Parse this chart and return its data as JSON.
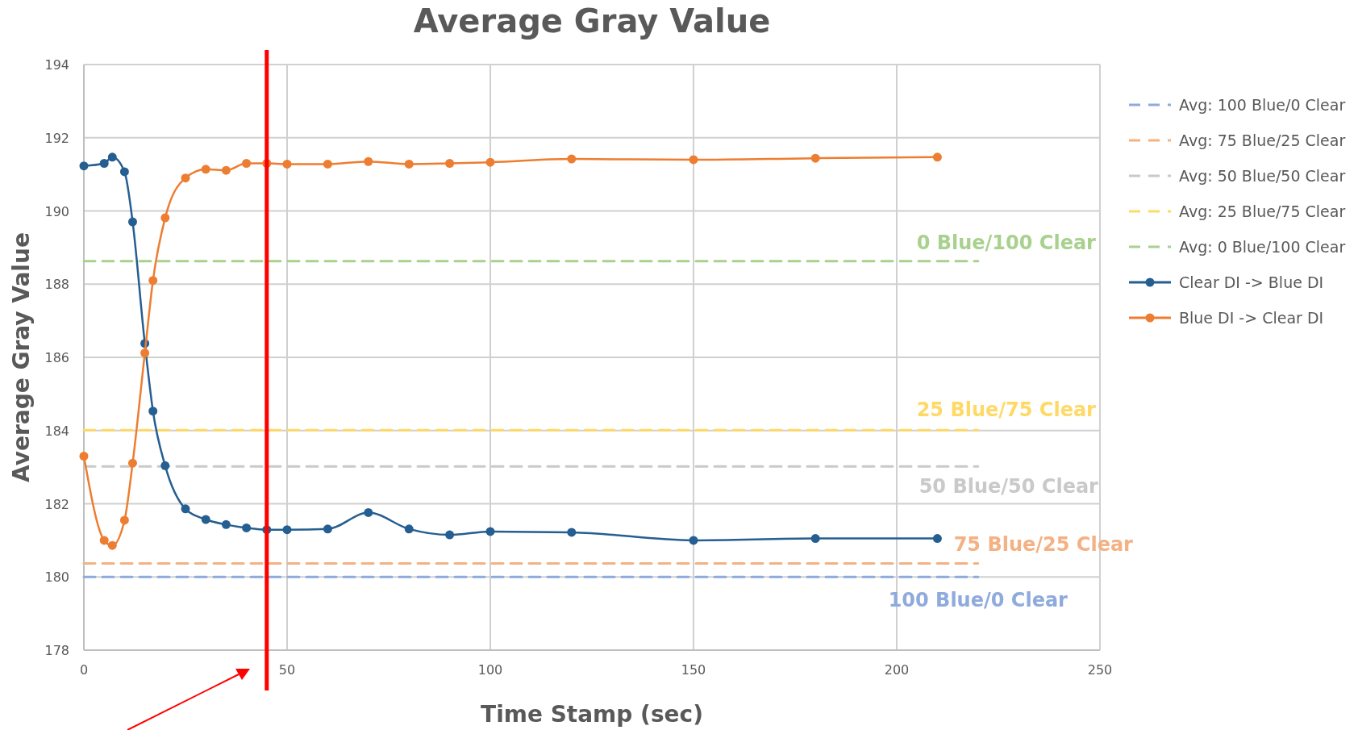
{
  "chart_data": {
    "type": "line",
    "title": "Average Gray Value",
    "xlabel": "Time Stamp (sec)",
    "ylabel": "Average Gray Value",
    "xlim": [
      0,
      250
    ],
    "xticks": [
      0,
      50,
      100,
      150,
      200,
      250
    ],
    "ylim": [
      178,
      194
    ],
    "yticks": [
      178,
      180,
      182,
      184,
      186,
      188,
      190,
      192,
      194
    ],
    "grid": true,
    "legend": "right",
    "marker": "circle",
    "series": [
      {
        "name": "Avg: 100 Blue/0 Clear",
        "color": "#8faadc",
        "x": [
          0,
          220
        ],
        "values": [
          180.0,
          180.0
        ],
        "line_style": "dashed",
        "marker": "none"
      },
      {
        "name": "Avg: 75 Blue/25 Clear",
        "color": "#f4b183",
        "x": [
          0,
          220
        ],
        "values": [
          180.37,
          180.37
        ],
        "line_style": "dashed",
        "marker": "none"
      },
      {
        "name": "Avg: 50 Blue/50 Clear",
        "color": "#c9c9c9",
        "x": [
          0,
          220
        ],
        "values": [
          183.02,
          183.02
        ],
        "line_style": "dashed",
        "marker": "none"
      },
      {
        "name": "Avg: 25 Blue/75 Clear",
        "color": "#ffd966",
        "x": [
          0,
          220
        ],
        "values": [
          184.01,
          184.01
        ],
        "line_style": "dashed",
        "marker": "none"
      },
      {
        "name": "Avg: 0 Blue/100 Clear",
        "color": "#a9d18e",
        "x": [
          0,
          220
        ],
        "values": [
          188.63,
          188.63
        ],
        "line_style": "dashed",
        "marker": "none"
      },
      {
        "name": "Clear DI -> Blue DI",
        "color": "#255e91",
        "x": [
          0,
          5,
          7,
          10,
          12,
          15,
          17,
          20,
          25,
          30,
          35,
          40,
          45,
          50,
          60,
          70,
          80,
          90,
          100,
          120,
          150,
          180,
          210
        ],
        "values": [
          191.23,
          191.3,
          191.47,
          191.07,
          189.7,
          186.38,
          184.53,
          183.04,
          181.86,
          181.57,
          181.43,
          181.34,
          181.29,
          181.29,
          181.31,
          181.76,
          181.31,
          181.15,
          181.24,
          181.22,
          181.0,
          181.05,
          181.05
        ]
      },
      {
        "name": "Blue DI -> Clear DI",
        "color": "#ed7d31",
        "x": [
          0,
          5,
          7,
          10,
          12,
          15,
          17,
          20,
          25,
          30,
          35,
          40,
          45,
          50,
          60,
          70,
          80,
          90,
          100,
          120,
          150,
          180,
          210
        ],
        "values": [
          183.3,
          181.0,
          180.86,
          181.55,
          183.11,
          186.12,
          188.1,
          189.81,
          190.9,
          191.14,
          191.11,
          191.3,
          191.3,
          191.28,
          191.28,
          191.35,
          191.28,
          191.3,
          191.33,
          191.42,
          191.4,
          191.44,
          191.47
        ]
      }
    ],
    "annotations": [
      "100 Blue/0 Clear",
      "75 Blue/25 Clear",
      "50 Blue/50 Clear",
      "25 Blue/75 Clear",
      "0 Blue/100 Clear"
    ],
    "ref_lines": [
      {
        "axis": "x",
        "value": 45,
        "label": null,
        "color": "#ff0000"
      }
    ]
  }
}
